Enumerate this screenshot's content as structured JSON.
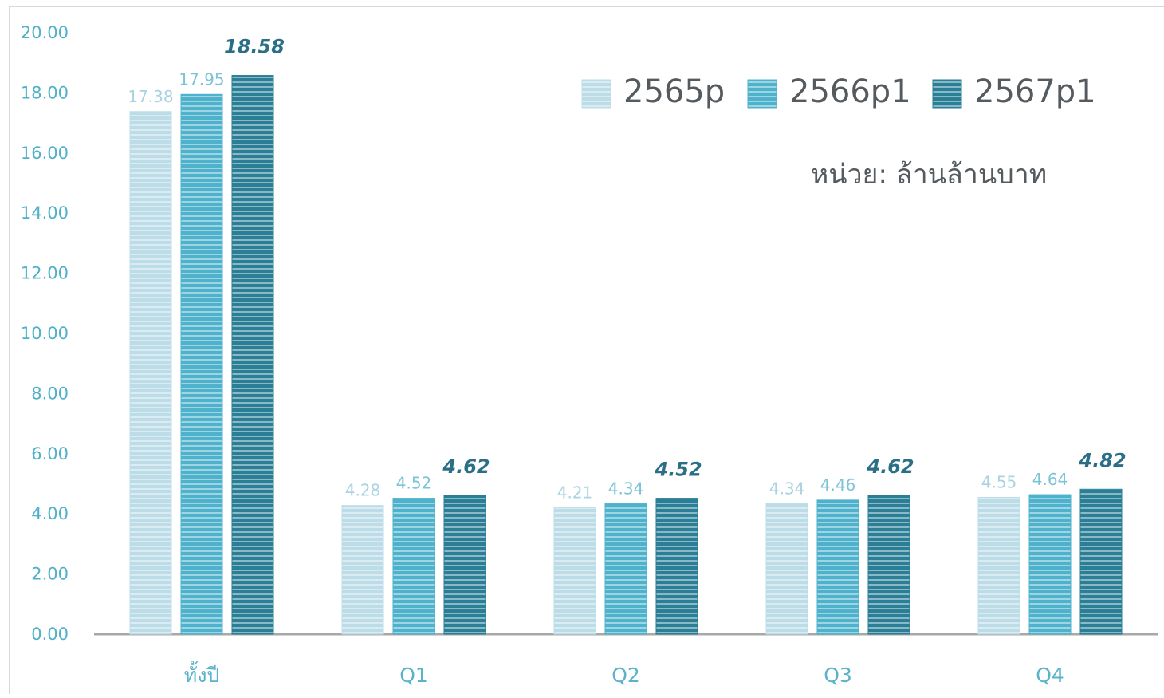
{
  "chart_data": {
    "type": "bar",
    "categories": [
      "ทั้งปี",
      "Q1",
      "Q2",
      "Q3",
      "Q4"
    ],
    "series": [
      {
        "name": "2565p",
        "values": [
          17.38,
          4.28,
          4.21,
          4.34,
          4.55
        ],
        "labels": [
          "17.38",
          "4.28",
          "4.21",
          "4.34",
          "4.55"
        ],
        "color": "#bcdde8"
      },
      {
        "name": "2566p1",
        "values": [
          17.95,
          4.52,
          4.34,
          4.46,
          4.64
        ],
        "labels": [
          "17.95",
          "4.52",
          "4.34",
          "4.46",
          "4.64"
        ],
        "color": "#4fb2cc"
      },
      {
        "name": "2567p1",
        "values": [
          18.58,
          4.62,
          4.52,
          4.62,
          4.82
        ],
        "labels": [
          "18.58",
          "4.62",
          "4.52",
          "4.62",
          "4.82"
        ],
        "color": "#2a7f96"
      }
    ],
    "ylim": [
      0,
      20
    ],
    "yticks": [
      "0.00",
      "2.00",
      "4.00",
      "6.00",
      "8.00",
      "10.00",
      "12.00",
      "14.00",
      "16.00",
      "18.00",
      "20.00"
    ],
    "unit_label": "หน่วย: ล้านล้านบาท",
    "legend_position": "top-right",
    "grid": false
  }
}
